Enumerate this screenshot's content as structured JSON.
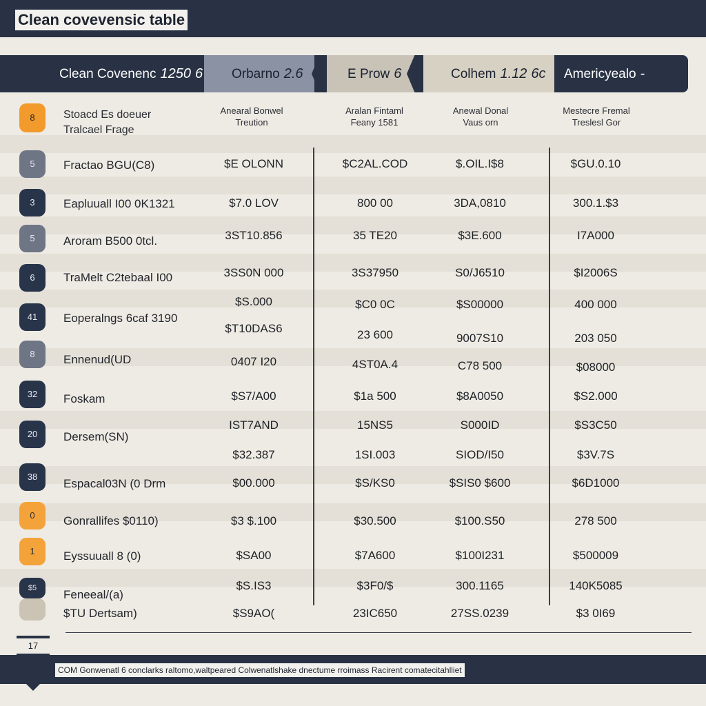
{
  "app": {
    "title": "Clean covevensic table"
  },
  "tabs": [
    {
      "label": "Clean Covenenc",
      "number": "1250",
      "extra": "6",
      "style": "dark"
    },
    {
      "label": "Orbarno",
      "number": "2.6",
      "style": "slate"
    },
    {
      "label": "E Prow",
      "number": "6",
      "style": "beige"
    },
    {
      "label": "Colhem",
      "number": "1.12",
      "extra": "6c",
      "style": "sand"
    },
    {
      "label": "Americyealo",
      "number": "-",
      "style": "dark"
    }
  ],
  "header": {
    "badge": "8",
    "label_line1": "Stoacd Es doeuer",
    "label_line2": "Tralcael Frage",
    "columns": [
      {
        "line1": "Anearal Bonwel",
        "line2": "Treution"
      },
      {
        "line1": "Aralan Fintaml",
        "line2": "Feany 1581"
      },
      {
        "line1": "Anewal Donal",
        "line2": "Vaus orn"
      },
      {
        "line1": "Mestecre Fremal",
        "line2": "Treslesl Gor"
      }
    ]
  },
  "rows": [
    {
      "badge": "5",
      "badge_style": "slate",
      "label": "Fractao BGU(C8)",
      "values": [
        "$E OLONN",
        "$C2AL.COD",
        "$.OIL.I$8",
        "$GU.0.10"
      ]
    },
    {
      "badge": "3",
      "badge_style": "navy",
      "label": "Eapluuall I00 0K1321",
      "values": [
        "$7.0 LOV",
        "800 00",
        "3DA,0810",
        "300.1.$3"
      ]
    },
    {
      "badge": "5",
      "badge_style": "slate",
      "label": "Aroram B500 0tcl.",
      "values": [
        "3ST10.856",
        "35 TE20",
        "$3E.600",
        "I7A000"
      ]
    },
    {
      "badge": "6",
      "badge_style": "navy",
      "label": "TraMelt C2tebaal I00",
      "values": [
        "3SS0N 000",
        "3S37950",
        "S0/J6510",
        "$I2006S"
      ]
    },
    {
      "badge": "41",
      "badge_style": "navy",
      "label": "Eoperalngs 6caf 3190",
      "values": [
        "$S.000",
        "$C0 0C",
        "$S00000",
        "400 000"
      ]
    },
    {
      "badge": "",
      "badge_style": "none",
      "label": "",
      "values": [
        "$T10DAS6",
        "23 600",
        "9007S10",
        "203 050"
      ]
    },
    {
      "badge": "8",
      "badge_style": "slate",
      "label": "Ennenud(UD",
      "values": [
        "0407 I20",
        "4ST0A.4",
        "C78 500",
        "$08000"
      ]
    },
    {
      "badge": "32",
      "badge_style": "navy",
      "label": "Foskam",
      "values": [
        "$S7/A00",
        "$1a 500",
        "$8A0050",
        "$S2.000"
      ]
    },
    {
      "badge": "20",
      "badge_style": "navy",
      "label": "Dersem(SN)",
      "values": [
        "IST7AND",
        "15NS5",
        "S000ID",
        "$S3C50"
      ]
    },
    {
      "badge": "",
      "badge_style": "none",
      "label": "",
      "values": [
        "$32.387",
        "1SI.003",
        "SIOD/I50",
        "$3V.7S"
      ]
    },
    {
      "badge": "38",
      "badge_style": "navy",
      "label": "Espacal03N (0 Drm",
      "values": [
        "$00.000",
        "$S/KS0",
        "$SIS0 $600",
        "$6D1000"
      ]
    },
    {
      "badge": "0",
      "badge_style": "orange",
      "label": "Gonrallifes $0110)",
      "values": [
        "$3 $.100",
        "$30.500",
        "$100.S50",
        "278 500"
      ]
    },
    {
      "badge": "1",
      "badge_style": "orange",
      "label": "Eyssuuall 8 (0)",
      "values": [
        "$SA00",
        "$7A600",
        "$100I231",
        "$500009"
      ]
    },
    {
      "badge": "$5",
      "badge_style": "navy",
      "label": "Feneeal/(a)",
      "values": [
        "$S.IS3",
        "$3F0/$",
        "300.1165",
        "140K5085"
      ]
    },
    {
      "badge": "",
      "badge_style": "beige",
      "label": "$TU Dertsam)",
      "values": [
        "$S9AO(",
        "23IC650",
        "27SS.0239",
        "$3 0I69"
      ]
    }
  ],
  "footer": {
    "page": "17",
    "text": "COM Gonwenatl 6 conclarks raltomo,waltpeared Colwenatlshake dnectume rroimass Racirent comatecitahlliet"
  },
  "colors": {
    "navy": "#283244",
    "orange": "#f39a2c",
    "slate": "#6e7585",
    "background": "#eeebe4"
  }
}
